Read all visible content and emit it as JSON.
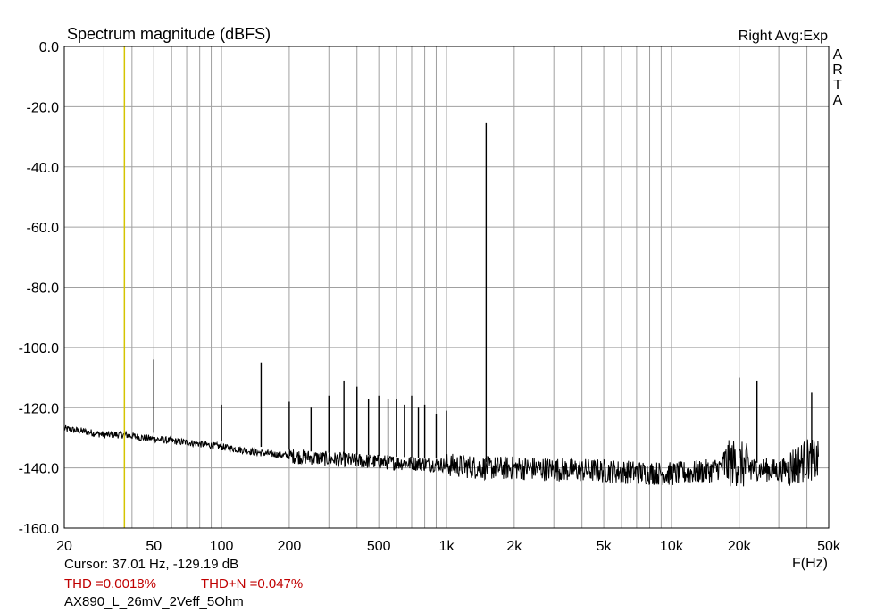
{
  "chart_data": {
    "type": "line",
    "title": "Spectrum magnitude (dBFS)",
    "top_right_label": "Right Avg:Exp",
    "brand": "ARTA",
    "xlabel": "F(Hz)",
    "ylabel": "",
    "x_scale": "log",
    "xlim": [
      20,
      50000
    ],
    "ylim": [
      -160,
      0
    ],
    "x_ticks": [
      20,
      50,
      100,
      200,
      500,
      1000,
      2000,
      5000,
      10000,
      20000,
      50000
    ],
    "x_tick_labels": [
      "20",
      "50",
      "100",
      "200",
      "500",
      "1k",
      "2k",
      "5k",
      "10k",
      "20k",
      "50k"
    ],
    "y_ticks": [
      0,
      -20,
      -40,
      -60,
      -80,
      -100,
      -120,
      -140,
      -160
    ],
    "y_tick_labels": [
      "0.0",
      "-20.0",
      "-40.0",
      "-60.0",
      "-80.0",
      "-100.0",
      "-120.0",
      "-140.0",
      "-160.0"
    ],
    "grid": true,
    "cursor": {
      "frequency_hz": 37.01,
      "level_db": -129.19
    },
    "noise_floor": {
      "x": [
        20,
        25,
        30,
        37,
        45,
        60,
        80,
        100,
        150,
        200,
        300,
        500,
        1000,
        1500,
        2000,
        5000,
        10000,
        15000,
        19000,
        22000,
        30000,
        36000,
        40000,
        45000
      ],
      "y": [
        -127,
        -128,
        -129,
        -129,
        -130,
        -131,
        -132,
        -133,
        -135,
        -136,
        -137,
        -138,
        -139,
        -140,
        -140,
        -141,
        -142,
        -141,
        -138,
        -140,
        -141,
        -139,
        -137,
        -138
      ]
    },
    "peaks": {
      "x": [
        50,
        100,
        150,
        200,
        250,
        300,
        350,
        400,
        450,
        500,
        550,
        600,
        650,
        700,
        750,
        800,
        900,
        1000,
        1500,
        20000,
        24000,
        42000
      ],
      "y": [
        -104,
        -119,
        -105,
        -118,
        -120,
        -116,
        -111,
        -113,
        -117,
        -116,
        -117,
        -117,
        -119,
        -116,
        -120,
        -119,
        -122,
        -121,
        -25.5,
        -110,
        -111,
        -115
      ]
    }
  },
  "info": {
    "cursor_text": "Cursor: 37.01 Hz, -129.19 dB",
    "thd_text": "THD =0.0018%",
    "thdn_text": "THD+N =0.047%",
    "file_label": "AX890_L_26mV_2Veff_5Ohm"
  },
  "colors": {
    "trace": "#000000",
    "grid": "#a0a0a0",
    "cursor_line": "#d4c400",
    "thd_text": "#c00000"
  }
}
